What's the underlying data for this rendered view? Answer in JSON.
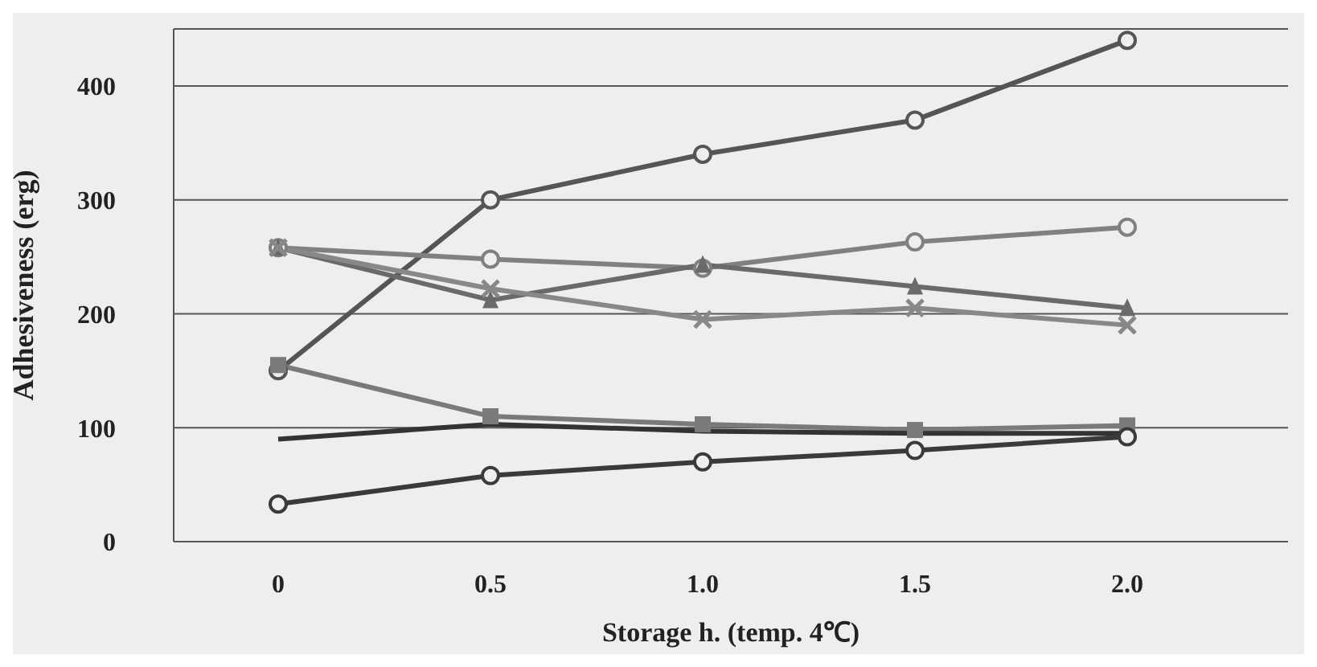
{
  "chart_data": {
    "type": "line",
    "xlabel": "Storage h. (temp. 4℃)",
    "ylabel": "Adhesiveness (erg)",
    "categories": [
      "0",
      "0.5",
      "1.0",
      "1.5",
      "2.0"
    ],
    "ylim": [
      0,
      450
    ],
    "yticks": [
      0,
      100,
      200,
      300,
      400
    ],
    "grid": "y",
    "legend": false,
    "line_style": "solid",
    "series": [
      {
        "color": "#555555",
        "marker": "circle",
        "values": [
          150,
          300,
          340,
          370,
          440
        ]
      },
      {
        "color": "#808080",
        "marker": "circle",
        "values": [
          258,
          248,
          240,
          263,
          276
        ]
      },
      {
        "color": "#6a6a6a",
        "marker": "triangle",
        "values": [
          258,
          212,
          243,
          224,
          205
        ]
      },
      {
        "color": "#888888",
        "marker": "cross",
        "values": [
          258,
          222,
          195,
          205,
          190
        ]
      },
      {
        "color": "#7a7a7a",
        "marker": "square",
        "values": [
          155,
          110,
          103,
          98,
          102
        ]
      },
      {
        "color": "#333333",
        "marker": "none",
        "values": [
          90,
          103,
          97,
          95,
          95
        ]
      },
      {
        "color": "#3a3a3a",
        "marker": "circle",
        "values": [
          33,
          58,
          70,
          80,
          92
        ]
      }
    ]
  }
}
